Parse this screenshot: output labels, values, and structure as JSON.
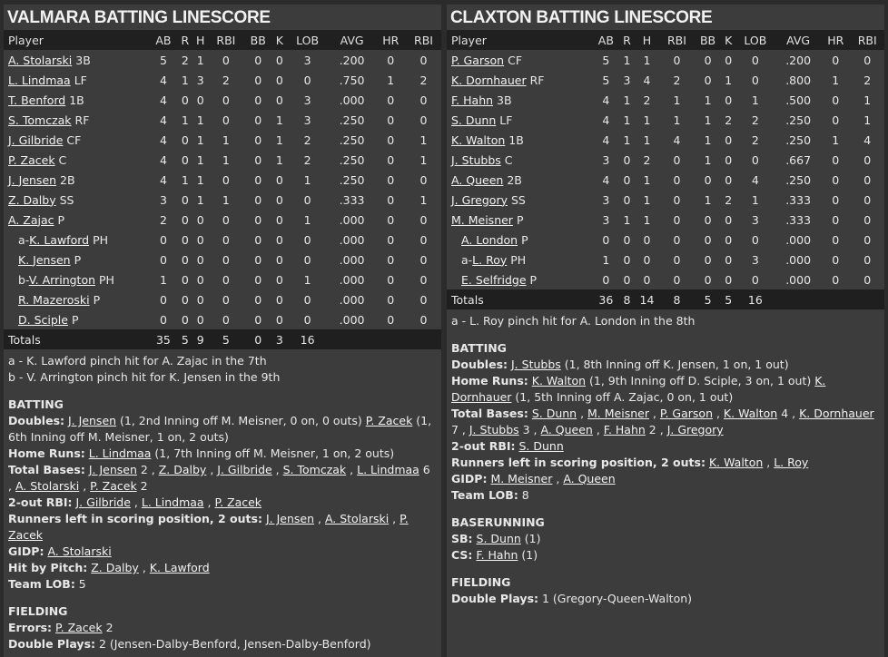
{
  "left": {
    "title": "VALMARA BATTING LINESCORE",
    "headers": [
      "Player",
      "AB",
      "R",
      "H",
      "RBI",
      "BB",
      "K",
      "LOB",
      "AVG",
      "HR",
      "RBI"
    ],
    "rows": [
      {
        "prefix": "",
        "name": "A. Stolarski",
        "pos": "3B",
        "sub": false,
        "stats": [
          "5",
          "2",
          "1",
          "0",
          "0",
          "0",
          "3",
          ".200",
          "0",
          "0"
        ]
      },
      {
        "prefix": "",
        "name": "L. Lindmaa",
        "pos": "LF",
        "sub": false,
        "stats": [
          "4",
          "1",
          "3",
          "2",
          "0",
          "0",
          "0",
          ".750",
          "1",
          "2"
        ]
      },
      {
        "prefix": "",
        "name": "T. Benford",
        "pos": "1B",
        "sub": false,
        "stats": [
          "4",
          "0",
          "0",
          "0",
          "0",
          "0",
          "3",
          ".000",
          "0",
          "0"
        ]
      },
      {
        "prefix": "",
        "name": "S. Tomczak",
        "pos": "RF",
        "sub": false,
        "stats": [
          "4",
          "1",
          "1",
          "0",
          "0",
          "1",
          "3",
          ".250",
          "0",
          "0"
        ]
      },
      {
        "prefix": "",
        "name": "J. Gilbride",
        "pos": "CF",
        "sub": false,
        "stats": [
          "4",
          "0",
          "1",
          "1",
          "0",
          "1",
          "2",
          ".250",
          "0",
          "1"
        ]
      },
      {
        "prefix": "",
        "name": "P. Zacek",
        "pos": "C",
        "sub": false,
        "stats": [
          "4",
          "0",
          "1",
          "1",
          "0",
          "1",
          "2",
          ".250",
          "0",
          "1"
        ]
      },
      {
        "prefix": "",
        "name": "J. Jensen",
        "pos": "2B",
        "sub": false,
        "stats": [
          "4",
          "1",
          "1",
          "0",
          "0",
          "0",
          "1",
          ".250",
          "0",
          "0"
        ]
      },
      {
        "prefix": "",
        "name": "Z. Dalby",
        "pos": "SS",
        "sub": false,
        "stats": [
          "3",
          "0",
          "1",
          "1",
          "0",
          "0",
          "0",
          ".333",
          "0",
          "1"
        ]
      },
      {
        "prefix": "",
        "name": "A. Zajac",
        "pos": "P",
        "sub": false,
        "stats": [
          "2",
          "0",
          "0",
          "0",
          "0",
          "0",
          "1",
          ".000",
          "0",
          "0"
        ]
      },
      {
        "prefix": "a-",
        "name": "K. Lawford",
        "pos": "PH",
        "sub": true,
        "stats": [
          "0",
          "0",
          "0",
          "0",
          "0",
          "0",
          "0",
          ".000",
          "0",
          "0"
        ]
      },
      {
        "prefix": "",
        "name": "K. Jensen",
        "pos": "P",
        "sub": true,
        "stats": [
          "0",
          "0",
          "0",
          "0",
          "0",
          "0",
          "0",
          ".000",
          "0",
          "0"
        ]
      },
      {
        "prefix": "b-",
        "name": "V. Arrington",
        "pos": "PH",
        "sub": true,
        "stats": [
          "1",
          "0",
          "0",
          "0",
          "0",
          "0",
          "1",
          ".000",
          "0",
          "0"
        ]
      },
      {
        "prefix": "",
        "name": "R. Mazeroski",
        "pos": "P",
        "sub": true,
        "stats": [
          "0",
          "0",
          "0",
          "0",
          "0",
          "0",
          "0",
          ".000",
          "0",
          "0"
        ]
      },
      {
        "prefix": "",
        "name": "D. Sciple",
        "pos": "P",
        "sub": true,
        "stats": [
          "0",
          "0",
          "0",
          "0",
          "0",
          "0",
          "0",
          ".000",
          "0",
          "0"
        ]
      }
    ],
    "totals": {
      "label": "Totals",
      "stats": [
        "35",
        "5",
        "9",
        "5",
        "0",
        "3",
        "16",
        "",
        "",
        ""
      ]
    },
    "notes": [
      "a - K. Lawford pinch hit for A. Zajac in the 7th",
      "b - V. Arrington pinch hit for K. Jensen in the 9th"
    ],
    "sections": [
      {
        "title": "BATTING",
        "lines": [
          {
            "label": "Doubles:",
            "parts": [
              {
                "t": " "
              },
              {
                "l": "J. Jensen"
              },
              {
                "t": " (1, 2nd Inning off M. Meisner, 0 on, 0 outs) "
              },
              {
                "l": "P. Zacek"
              },
              {
                "t": " (1, 6th Inning off M. Meisner, 1 on, 2 outs)"
              }
            ]
          },
          {
            "label": "Home Runs:",
            "parts": [
              {
                "t": " "
              },
              {
                "l": "L. Lindmaa"
              },
              {
                "t": " (1, 7th Inning off M. Meisner, 1 on, 2 outs)"
              }
            ]
          },
          {
            "label": "Total Bases:",
            "parts": [
              {
                "t": " "
              },
              {
                "l": "J. Jensen"
              },
              {
                "t": " 2 , "
              },
              {
                "l": "Z. Dalby"
              },
              {
                "t": " , "
              },
              {
                "l": "J. Gilbride"
              },
              {
                "t": " , "
              },
              {
                "l": "S. Tomczak"
              },
              {
                "t": " , "
              },
              {
                "l": "L. Lindmaa"
              },
              {
                "t": " 6 , "
              },
              {
                "l": "A. Stolarski"
              },
              {
                "t": " , "
              },
              {
                "l": "P. Zacek"
              },
              {
                "t": " 2"
              }
            ]
          },
          {
            "label": "2-out RBI:",
            "parts": [
              {
                "t": " "
              },
              {
                "l": "J. Gilbride"
              },
              {
                "t": " , "
              },
              {
                "l": "L. Lindmaa"
              },
              {
                "t": " , "
              },
              {
                "l": "P. Zacek"
              }
            ]
          },
          {
            "label": "Runners left in scoring position, 2 outs:",
            "parts": [
              {
                "t": " "
              },
              {
                "l": "J. Jensen"
              },
              {
                "t": " , "
              },
              {
                "l": "A. Stolarski"
              },
              {
                "t": " , "
              },
              {
                "l": "P. Zacek"
              }
            ]
          },
          {
            "label": "GIDP:",
            "parts": [
              {
                "t": " "
              },
              {
                "l": "A. Stolarski"
              }
            ]
          },
          {
            "label": "Hit by Pitch:",
            "parts": [
              {
                "t": " "
              },
              {
                "l": "Z. Dalby"
              },
              {
                "t": " , "
              },
              {
                "l": "K. Lawford"
              }
            ]
          },
          {
            "label": "Team LOB:",
            "parts": [
              {
                "t": " 5"
              }
            ]
          }
        ]
      },
      {
        "title": "FIELDING",
        "lines": [
          {
            "label": "Errors:",
            "parts": [
              {
                "t": " "
              },
              {
                "l": "P. Zacek"
              },
              {
                "t": " 2"
              }
            ]
          },
          {
            "label": "Double Plays:",
            "parts": [
              {
                "t": " 2 (Jensen-Dalby-Benford, Jensen-Dalby-Benford)"
              }
            ]
          }
        ]
      }
    ]
  },
  "right": {
    "title": "CLAXTON BATTING LINESCORE",
    "headers": [
      "Player",
      "AB",
      "R",
      "H",
      "RBI",
      "BB",
      "K",
      "LOB",
      "AVG",
      "HR",
      "RBI"
    ],
    "rows": [
      {
        "prefix": "",
        "name": "P. Garson",
        "pos": "CF",
        "sub": false,
        "stats": [
          "5",
          "1",
          "1",
          "0",
          "0",
          "0",
          "0",
          ".200",
          "0",
          "0"
        ]
      },
      {
        "prefix": "",
        "name": "K. Dornhauer",
        "pos": "RF",
        "sub": false,
        "stats": [
          "5",
          "3",
          "4",
          "2",
          "0",
          "1",
          "0",
          ".800",
          "1",
          "2"
        ]
      },
      {
        "prefix": "",
        "name": "F. Hahn",
        "pos": "3B",
        "sub": false,
        "stats": [
          "4",
          "1",
          "2",
          "1",
          "1",
          "0",
          "1",
          ".500",
          "0",
          "1"
        ]
      },
      {
        "prefix": "",
        "name": "S. Dunn",
        "pos": "LF",
        "sub": false,
        "stats": [
          "4",
          "1",
          "1",
          "1",
          "1",
          "2",
          "2",
          ".250",
          "0",
          "1"
        ]
      },
      {
        "prefix": "",
        "name": "K. Walton",
        "pos": "1B",
        "sub": false,
        "stats": [
          "4",
          "1",
          "1",
          "4",
          "1",
          "0",
          "2",
          ".250",
          "1",
          "4"
        ]
      },
      {
        "prefix": "",
        "name": "J. Stubbs",
        "pos": "C",
        "sub": false,
        "stats": [
          "3",
          "0",
          "2",
          "0",
          "1",
          "0",
          "0",
          ".667",
          "0",
          "0"
        ]
      },
      {
        "prefix": "",
        "name": "A. Queen",
        "pos": "2B",
        "sub": false,
        "stats": [
          "4",
          "0",
          "1",
          "0",
          "0",
          "0",
          "4",
          ".250",
          "0",
          "0"
        ]
      },
      {
        "prefix": "",
        "name": "J. Gregory",
        "pos": "SS",
        "sub": false,
        "stats": [
          "3",
          "0",
          "1",
          "0",
          "1",
          "2",
          "1",
          ".333",
          "0",
          "0"
        ]
      },
      {
        "prefix": "",
        "name": "M. Meisner",
        "pos": "P",
        "sub": false,
        "stats": [
          "3",
          "1",
          "1",
          "0",
          "0",
          "0",
          "3",
          ".333",
          "0",
          "0"
        ]
      },
      {
        "prefix": "",
        "name": "A. London",
        "pos": "P",
        "sub": true,
        "stats": [
          "0",
          "0",
          "0",
          "0",
          "0",
          "0",
          "0",
          ".000",
          "0",
          "0"
        ]
      },
      {
        "prefix": "a-",
        "name": "L. Roy",
        "pos": "PH",
        "sub": true,
        "stats": [
          "1",
          "0",
          "0",
          "0",
          "0",
          "0",
          "3",
          ".000",
          "0",
          "0"
        ]
      },
      {
        "prefix": "",
        "name": "E. Selfridge",
        "pos": "P",
        "sub": true,
        "stats": [
          "0",
          "0",
          "0",
          "0",
          "0",
          "0",
          "0",
          ".000",
          "0",
          "0"
        ]
      }
    ],
    "totals": {
      "label": "Totals",
      "stats": [
        "36",
        "8",
        "14",
        "8",
        "5",
        "5",
        "16",
        "",
        "",
        ""
      ]
    },
    "notes": [
      "a - L. Roy pinch hit for A. London in the 8th"
    ],
    "sections": [
      {
        "title": "BATTING",
        "lines": [
          {
            "label": "Doubles:",
            "parts": [
              {
                "t": " "
              },
              {
                "l": "J. Stubbs"
              },
              {
                "t": " (1, 8th Inning off K. Jensen, 1 on, 1 out)"
              }
            ]
          },
          {
            "label": "Home Runs:",
            "parts": [
              {
                "t": " "
              },
              {
                "l": "K. Walton"
              },
              {
                "t": " (1, 9th Inning off D. Sciple, 3 on, 1 out) "
              },
              {
                "l": "K. Dornhauer"
              },
              {
                "t": " (1, 5th Inning off A. Zajac, 0 on, 1 out)"
              }
            ]
          },
          {
            "label": "Total Bases:",
            "parts": [
              {
                "t": " "
              },
              {
                "l": "S. Dunn"
              },
              {
                "t": " , "
              },
              {
                "l": "M. Meisner"
              },
              {
                "t": " , "
              },
              {
                "l": "P. Garson"
              },
              {
                "t": " , "
              },
              {
                "l": "K. Walton"
              },
              {
                "t": " 4 , "
              },
              {
                "l": "K. Dornhauer"
              },
              {
                "t": " 7 , "
              },
              {
                "l": "J. Stubbs"
              },
              {
                "t": " 3 , "
              },
              {
                "l": "A. Queen"
              },
              {
                "t": " , "
              },
              {
                "l": "F. Hahn"
              },
              {
                "t": " 2 , "
              },
              {
                "l": "J. Gregory"
              }
            ]
          },
          {
            "label": "2-out RBI:",
            "parts": [
              {
                "t": " "
              },
              {
                "l": "S. Dunn"
              }
            ]
          },
          {
            "label": "Runners left in scoring position, 2 outs:",
            "parts": [
              {
                "t": " "
              },
              {
                "l": "K. Walton"
              },
              {
                "t": " , "
              },
              {
                "l": "L. Roy"
              }
            ]
          },
          {
            "label": "GIDP:",
            "parts": [
              {
                "t": " "
              },
              {
                "l": "M. Meisner"
              },
              {
                "t": " , "
              },
              {
                "l": "A. Queen"
              }
            ]
          },
          {
            "label": "Team LOB:",
            "parts": [
              {
                "t": " 8"
              }
            ]
          }
        ]
      },
      {
        "title": "BASERUNNING",
        "lines": [
          {
            "label": "SB:",
            "parts": [
              {
                "t": " "
              },
              {
                "l": "S. Dunn"
              },
              {
                "t": " (1)"
              }
            ]
          },
          {
            "label": "CS:",
            "parts": [
              {
                "t": " "
              },
              {
                "l": "F. Hahn"
              },
              {
                "t": " (1)"
              }
            ]
          }
        ]
      },
      {
        "title": "FIELDING",
        "lines": [
          {
            "label": "Double Plays:",
            "parts": [
              {
                "t": " 1 (Gregory-Queen-Walton)"
              }
            ]
          }
        ]
      }
    ]
  }
}
